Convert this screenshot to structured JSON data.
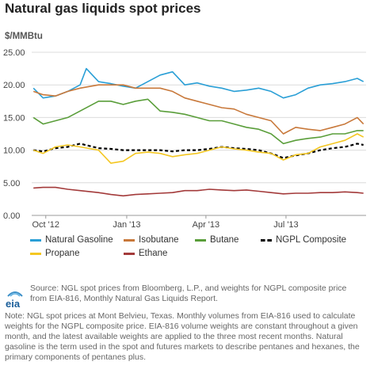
{
  "title": "Natural gas liquids spot prices",
  "unit_label": "$/MMBtu",
  "legend": [
    {
      "label": "Natural Gasoline",
      "color": "#2a9fd6"
    },
    {
      "label": "Isobutane",
      "color": "#c8783a"
    },
    {
      "label": "Butane",
      "color": "#5a9e3a"
    },
    {
      "label": "NGPL Composite",
      "color": "#000000"
    },
    {
      "label": "Propane",
      "color": "#f4c722"
    },
    {
      "label": "Ethane",
      "color": "#a33a3a"
    }
  ],
  "logo_text": "eia",
  "source": "Source: NGL spot prices from Bloomberg, L.P., and weights for NGPL composite price from EIA-816, Monthly Natural Gas Liquids Report.",
  "note": "Note: NGL spot prices at Mont Belvieu, Texas. Monthly volumes from EIA-816 used to calculate weights for the NGPL composite price. EIA-816 volume weights are constant throughout a given month, and the latest available weights are applied to the three most recent months. Natural gasoline is the term used in the spot and futures markets to describe pentanes and hexanes, the primary components of pentanes plus.",
  "chart_data": {
    "type": "line",
    "title": "Natural gas liquids spot prices",
    "ylabel": "$/MMBtu",
    "ylim": [
      0,
      25
    ],
    "yticks": [
      "0.00",
      "5.00",
      "10.00",
      "15.00",
      "20.00",
      "25.00"
    ],
    "xlim": [
      "2012-09-15",
      "2013-09-30"
    ],
    "xticks": [
      {
        "label": "Oct '12",
        "date": "2012-10-01"
      },
      {
        "label": "Jan '13",
        "date": "2013-01-01"
      },
      {
        "label": "Apr '13",
        "date": "2013-04-01"
      },
      {
        "label": "Jul '13",
        "date": "2013-07-01"
      }
    ],
    "grid": "horizontal",
    "legend_position": "bottom",
    "series": [
      {
        "name": "Natural Gasoline",
        "color": "#2a9fd6",
        "dash": false,
        "x": [
          "2012-09-17",
          "2012-09-28",
          "2012-10-12",
          "2012-10-26",
          "2012-11-09",
          "2012-11-16",
          "2012-11-30",
          "2012-12-14",
          "2012-12-28",
          "2013-01-11",
          "2013-01-25",
          "2013-02-08",
          "2013-02-22",
          "2013-03-08",
          "2013-03-22",
          "2013-04-05",
          "2013-04-19",
          "2013-05-03",
          "2013-05-17",
          "2013-05-31",
          "2013-06-14",
          "2013-06-28",
          "2013-07-12",
          "2013-07-26",
          "2013-08-09",
          "2013-08-23",
          "2013-09-06",
          "2013-09-20",
          "2013-09-27"
        ],
        "y": [
          19.5,
          18.0,
          18.3,
          19.0,
          20.0,
          22.5,
          20.5,
          20.2,
          19.8,
          19.5,
          20.5,
          21.5,
          22.0,
          20.0,
          20.3,
          19.8,
          19.5,
          19.0,
          19.2,
          19.5,
          19.0,
          18.0,
          18.5,
          19.5,
          20.0,
          20.2,
          20.5,
          21.0,
          20.5
        ]
      },
      {
        "name": "Isobutane",
        "color": "#c8783a",
        "dash": false,
        "x": [
          "2012-09-17",
          "2012-09-28",
          "2012-10-12",
          "2012-10-26",
          "2012-11-09",
          "2012-11-30",
          "2012-12-14",
          "2012-12-28",
          "2013-01-11",
          "2013-01-25",
          "2013-02-08",
          "2013-02-22",
          "2013-03-08",
          "2013-03-22",
          "2013-04-05",
          "2013-04-19",
          "2013-05-03",
          "2013-05-17",
          "2013-05-31",
          "2013-06-14",
          "2013-06-28",
          "2013-07-12",
          "2013-07-26",
          "2013-08-09",
          "2013-08-23",
          "2013-09-06",
          "2013-09-20",
          "2013-09-27"
        ],
        "y": [
          19.0,
          18.5,
          18.3,
          19.0,
          19.5,
          20.0,
          20.0,
          20.0,
          19.5,
          19.5,
          19.5,
          19.0,
          18.0,
          17.5,
          17.0,
          16.5,
          16.3,
          15.5,
          15.0,
          14.5,
          12.5,
          13.5,
          13.2,
          13.0,
          13.5,
          14.0,
          15.0,
          14.0
        ]
      },
      {
        "name": "Butane",
        "color": "#5a9e3a",
        "dash": false,
        "x": [
          "2012-09-17",
          "2012-09-28",
          "2012-10-12",
          "2012-10-26",
          "2012-11-09",
          "2012-11-30",
          "2012-12-14",
          "2012-12-28",
          "2013-01-11",
          "2013-01-25",
          "2013-02-08",
          "2013-02-22",
          "2013-03-08",
          "2013-03-22",
          "2013-04-05",
          "2013-04-19",
          "2013-05-03",
          "2013-05-17",
          "2013-05-31",
          "2013-06-14",
          "2013-06-28",
          "2013-07-12",
          "2013-07-26",
          "2013-08-09",
          "2013-08-23",
          "2013-09-06",
          "2013-09-20",
          "2013-09-27"
        ],
        "y": [
          15.0,
          14.0,
          14.5,
          15.0,
          16.0,
          17.5,
          17.5,
          17.0,
          17.5,
          17.8,
          16.0,
          15.8,
          15.5,
          15.0,
          14.5,
          14.5,
          14.0,
          13.5,
          13.2,
          12.5,
          11.0,
          11.5,
          11.8,
          12.0,
          12.5,
          12.5,
          13.0,
          13.0
        ]
      },
      {
        "name": "NGPL Composite",
        "color": "#000000",
        "dash": true,
        "x": [
          "2012-09-17",
          "2012-09-28",
          "2012-10-12",
          "2012-10-26",
          "2012-11-09",
          "2012-11-30",
          "2012-12-14",
          "2012-12-28",
          "2013-01-11",
          "2013-01-25",
          "2013-02-08",
          "2013-02-22",
          "2013-03-08",
          "2013-03-22",
          "2013-04-05",
          "2013-04-19",
          "2013-05-03",
          "2013-05-17",
          "2013-05-31",
          "2013-06-14",
          "2013-06-28",
          "2013-07-12",
          "2013-07-26",
          "2013-08-09",
          "2013-08-23",
          "2013-09-06",
          "2013-09-20",
          "2013-09-27"
        ],
        "y": [
          10.0,
          9.8,
          10.3,
          10.5,
          11.0,
          10.3,
          10.2,
          10.0,
          10.0,
          10.0,
          10.0,
          9.8,
          10.0,
          10.0,
          10.2,
          10.5,
          10.3,
          10.2,
          10.0,
          9.5,
          8.8,
          9.2,
          9.5,
          10.0,
          10.3,
          10.5,
          11.0,
          10.8
        ]
      },
      {
        "name": "Propane",
        "color": "#f4c722",
        "dash": false,
        "x": [
          "2012-09-17",
          "2012-09-28",
          "2012-10-12",
          "2012-10-26",
          "2012-11-09",
          "2012-11-30",
          "2012-12-14",
          "2012-12-28",
          "2013-01-11",
          "2013-01-25",
          "2013-02-08",
          "2013-02-22",
          "2013-03-08",
          "2013-03-22",
          "2013-04-05",
          "2013-04-19",
          "2013-05-03",
          "2013-05-17",
          "2013-05-31",
          "2013-06-14",
          "2013-06-28",
          "2013-07-12",
          "2013-07-26",
          "2013-08-09",
          "2013-08-23",
          "2013-09-06",
          "2013-09-20",
          "2013-09-27"
        ],
        "y": [
          10.0,
          9.5,
          10.5,
          10.8,
          10.5,
          10.0,
          8.0,
          8.3,
          9.5,
          9.7,
          9.5,
          9.0,
          9.3,
          9.5,
          10.0,
          10.5,
          10.2,
          10.0,
          9.7,
          9.5,
          8.5,
          9.3,
          9.5,
          10.5,
          11.0,
          11.5,
          12.5,
          12.0
        ]
      },
      {
        "name": "Ethane",
        "color": "#a33a3a",
        "dash": false,
        "x": [
          "2012-09-17",
          "2012-09-28",
          "2012-10-12",
          "2012-10-26",
          "2012-11-09",
          "2012-11-30",
          "2012-12-14",
          "2012-12-28",
          "2013-01-11",
          "2013-01-25",
          "2013-02-08",
          "2013-02-22",
          "2013-03-08",
          "2013-03-22",
          "2013-04-05",
          "2013-04-19",
          "2013-05-03",
          "2013-05-17",
          "2013-05-31",
          "2013-06-14",
          "2013-06-28",
          "2013-07-12",
          "2013-07-26",
          "2013-08-09",
          "2013-08-23",
          "2013-09-06",
          "2013-09-20",
          "2013-09-27"
        ],
        "y": [
          4.2,
          4.3,
          4.3,
          4.0,
          3.8,
          3.5,
          3.2,
          3.0,
          3.2,
          3.3,
          3.4,
          3.5,
          3.8,
          3.8,
          4.0,
          3.9,
          3.8,
          3.9,
          3.7,
          3.5,
          3.3,
          3.4,
          3.4,
          3.5,
          3.5,
          3.6,
          3.5,
          3.4
        ]
      }
    ]
  }
}
